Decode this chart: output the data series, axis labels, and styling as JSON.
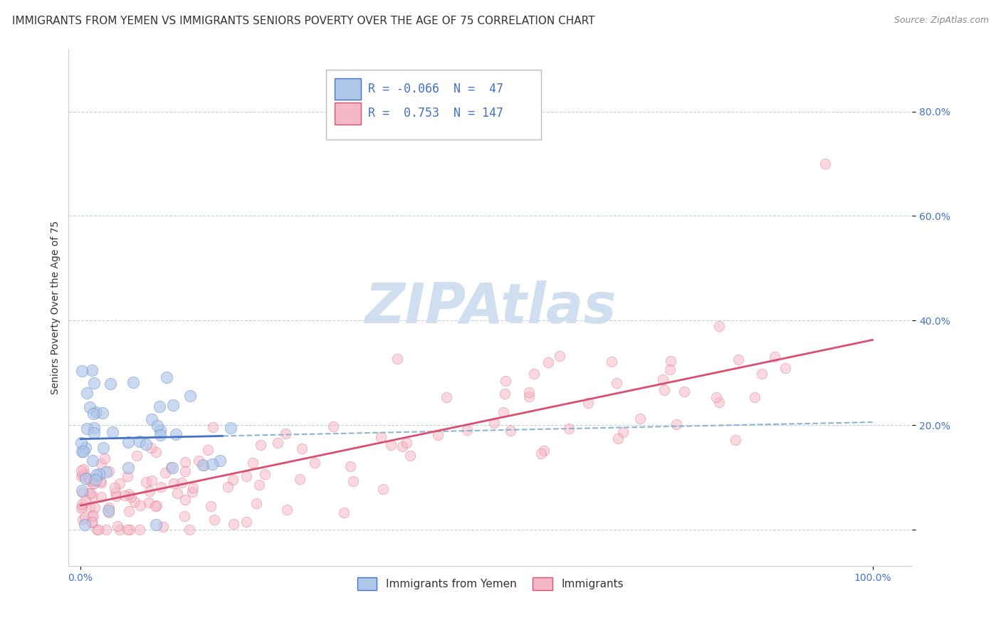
{
  "title": "IMMIGRANTS FROM YEMEN VS IMMIGRANTS SENIORS POVERTY OVER THE AGE OF 75 CORRELATION CHART",
  "source": "Source: ZipAtlas.com",
  "ylabel": "Seniors Poverty Over the Age of 75",
  "legend_R1": "-0.066",
  "legend_N1": "47",
  "legend_R2": "0.753",
  "legend_N2": "147",
  "blue_fill": "#aec6e8",
  "blue_edge": "#4472c4",
  "pink_fill": "#f5b8c8",
  "pink_edge": "#d94f70",
  "blue_line_color": "#4472c4",
  "pink_line_color": "#d94f70",
  "dash_line_color": "#90b4d0",
  "background_color": "#ffffff",
  "watermark_color": "#d0dff0",
  "title_fontsize": 11,
  "source_fontsize": 9,
  "axis_label_fontsize": 10,
  "tick_fontsize": 10,
  "legend_fontsize": 12
}
